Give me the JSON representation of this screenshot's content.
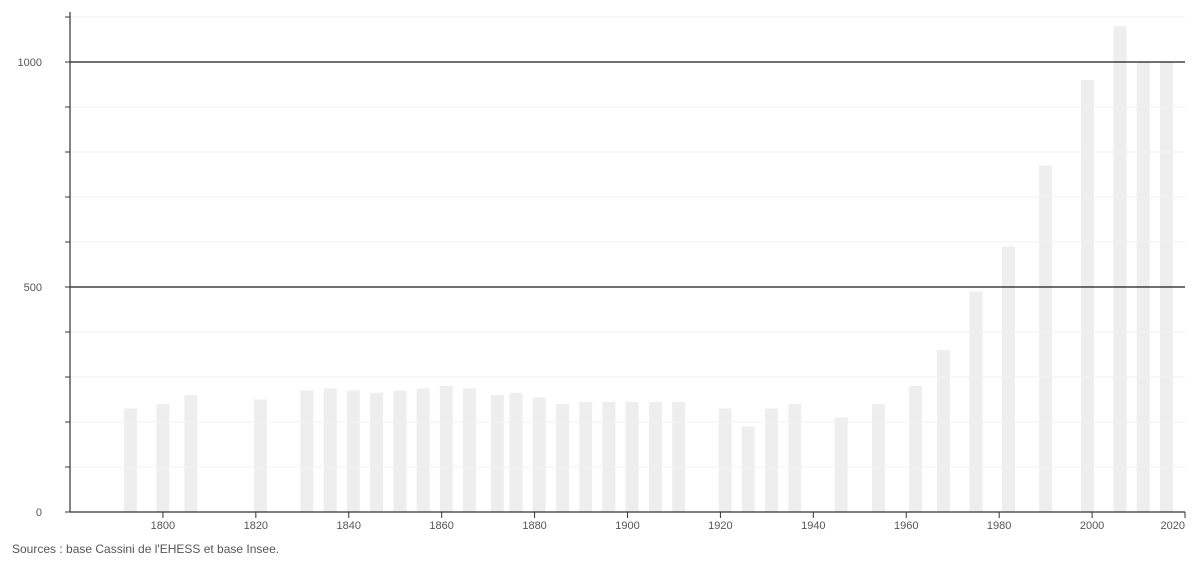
{
  "chart_data": {
    "type": "bar",
    "title": "",
    "xlabel": "",
    "ylabel": "",
    "x": [
      1793,
      1800,
      1806,
      1821,
      1831,
      1836,
      1841,
      1846,
      1851,
      1856,
      1861,
      1866,
      1872,
      1876,
      1881,
      1886,
      1891,
      1896,
      1901,
      1906,
      1911,
      1921,
      1926,
      1931,
      1936,
      1946,
      1954,
      1962,
      1968,
      1975,
      1982,
      1990,
      1999,
      2006,
      2011,
      2016
    ],
    "values": [
      230,
      240,
      260,
      250,
      270,
      275,
      270,
      265,
      270,
      275,
      280,
      275,
      260,
      265,
      255,
      240,
      245,
      245,
      245,
      245,
      245,
      230,
      190,
      230,
      240,
      210,
      240,
      280,
      360,
      490,
      590,
      770,
      960,
      1080,
      1000,
      1000
    ],
    "xlim": [
      1780,
      2020
    ],
    "ylim": [
      0,
      1100
    ],
    "x_ticks": [
      "1800",
      "1820",
      "1840",
      "1860",
      "1880",
      "1900",
      "1920",
      "1940",
      "1960",
      "1980",
      "2000",
      "2020"
    ],
    "y_ticks": [
      "0",
      "500",
      "1000"
    ],
    "grid": true,
    "bar_color": "#eeeeee",
    "gridline_color": "#1a1a1a",
    "source_note": "Sources : base Cassini de l'EHESS et base Insee."
  }
}
